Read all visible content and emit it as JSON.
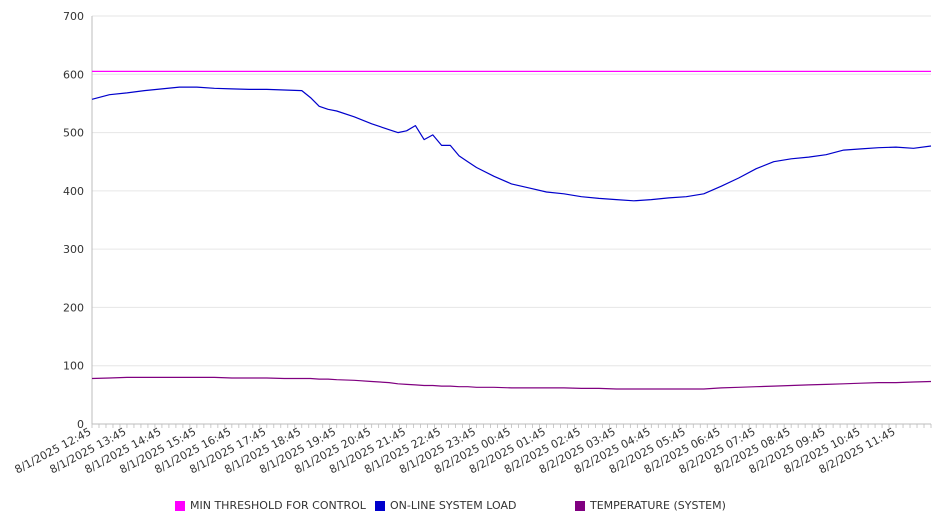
{
  "chart_data": {
    "type": "line",
    "ylim": [
      0,
      700
    ],
    "yticks": [
      0,
      100,
      200,
      300,
      400,
      500,
      600,
      700
    ],
    "xlabels": [
      "8/1/2025 12:45",
      "8/1/2025 13:45",
      "8/1/2025 14:45",
      "8/1/2025 15:45",
      "8/1/2025 16:45",
      "8/1/2025 17:45",
      "8/1/2025 18:45",
      "8/1/2025 19:45",
      "8/1/2025 20:45",
      "8/1/2025 21:45",
      "8/1/2025 22:45",
      "8/1/2025 23:45",
      "8/2/2025 00:45",
      "8/2/2025 01:45",
      "8/2/2025 02:45",
      "8/2/2025 03:45",
      "8/2/2025 04:45",
      "8/2/2025 05:45",
      "8/2/2025 06:45",
      "8/2/2025 07:45",
      "8/2/2025 08:45",
      "8/2/2025 09:45",
      "8/2/2025 10:45",
      "8/2/2025 11:45"
    ],
    "x_hours": [
      0,
      0.5,
      1,
      1.5,
      2,
      2.5,
      3,
      3.5,
      4,
      4.5,
      5,
      5.5,
      6,
      6.25,
      6.5,
      6.75,
      7,
      7.5,
      8,
      8.5,
      8.75,
      9,
      9.25,
      9.5,
      9.75,
      10,
      10.25,
      10.5,
      10.75,
      11,
      11.5,
      12,
      12.5,
      13,
      13.5,
      14,
      14.5,
      15,
      15.5,
      16,
      16.5,
      17,
      17.5,
      18,
      18.5,
      19,
      19.5,
      20,
      20.5,
      21,
      21.5,
      22,
      22.5,
      23,
      23.5,
      24
    ],
    "series": [
      {
        "name": "MIN THRESHOLD FOR CONTROL",
        "color": "#ff00ff",
        "values": [
          605,
          605,
          605,
          605,
          605,
          605,
          605,
          605,
          605,
          605,
          605,
          605,
          605,
          605,
          605,
          605,
          605,
          605,
          605,
          605,
          605,
          605,
          605,
          605,
          605,
          605,
          605,
          605,
          605,
          605,
          605,
          605,
          605,
          605,
          605,
          605,
          605,
          605,
          605,
          605,
          605,
          605,
          605,
          605,
          605,
          605,
          605,
          605,
          605,
          605,
          605,
          605,
          605,
          605,
          605,
          605
        ]
      },
      {
        "name": "ON-LINE SYSTEM LOAD",
        "color": "#0000cc",
        "values": [
          557,
          565,
          568,
          572,
          575,
          578,
          578,
          576,
          575,
          574,
          574,
          573,
          572,
          560,
          545,
          540,
          537,
          527,
          515,
          505,
          500,
          503,
          512,
          488,
          496,
          478,
          478,
          460,
          450,
          440,
          425,
          412,
          405,
          398,
          395,
          390,
          387,
          385,
          383,
          385,
          388,
          390,
          395,
          408,
          422,
          438,
          450,
          455,
          458,
          462,
          470,
          472,
          474,
          475,
          473,
          477
        ]
      },
      {
        "name": "TEMPERATURE (SYSTEM)",
        "color": "#800080",
        "values": [
          78,
          79,
          80,
          80,
          80,
          80,
          80,
          80,
          79,
          79,
          79,
          78,
          78,
          78,
          77,
          77,
          76,
          75,
          73,
          71,
          69,
          68,
          67,
          66,
          66,
          65,
          65,
          64,
          64,
          63,
          63,
          62,
          62,
          62,
          62,
          61,
          61,
          60,
          60,
          60,
          60,
          60,
          60,
          62,
          63,
          64,
          65,
          66,
          67,
          68,
          69,
          70,
          71,
          71,
          72,
          73
        ]
      }
    ]
  }
}
